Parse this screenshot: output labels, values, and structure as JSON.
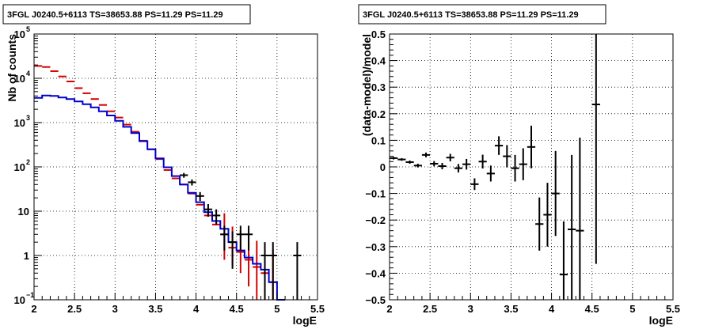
{
  "chart_data": [
    {
      "type": "histogram",
      "title": "3FGL J0240.5+6113 TS=38653.88 PS=11.29 PS=11.29",
      "xlabel": "logE",
      "ylabel": "Nb of counts",
      "xlim": [
        2,
        5.5
      ],
      "ylim": [
        0.1,
        100000
      ],
      "yscale": "log",
      "grid": true,
      "xticks": [
        "2",
        "2.5",
        "3",
        "3.5",
        "4",
        "4.5",
        "5",
        "5.5"
      ],
      "yticks": [
        {
          "value": 0.1,
          "label": "10",
          "exp": "−1"
        },
        {
          "value": 1,
          "label": "1",
          "exp": ""
        },
        {
          "value": 10,
          "label": "10",
          "exp": ""
        },
        {
          "value": 100,
          "label": "10",
          "exp": "2"
        },
        {
          "value": 1000,
          "label": "10",
          "exp": "3"
        },
        {
          "value": 10000,
          "label": "10",
          "exp": "4"
        },
        {
          "value": 100000,
          "label": "10",
          "exp": "5"
        }
      ],
      "bin_width": 0.1,
      "series": [
        {
          "role": "counts-red",
          "color": "#d40000",
          "style": "bars",
          "x": [
            2.05,
            2.15,
            2.25,
            2.35,
            2.45,
            2.55,
            2.65,
            2.75,
            2.85,
            2.95,
            3.05,
            3.15,
            3.25,
            3.35,
            3.45,
            3.55,
            3.65,
            3.75,
            3.85,
            3.95,
            4.05,
            4.15,
            4.25,
            4.35,
            4.45,
            4.55,
            4.65,
            4.75,
            4.85,
            4.95
          ],
          "y": [
            19000,
            18000,
            14500,
            11000,
            8500,
            6000,
            4600,
            3400,
            2500,
            1800,
            1300,
            900,
            620,
            390,
            250,
            150,
            85,
            55,
            40,
            25,
            14,
            8,
            5,
            3,
            1.5,
            1.2,
            0.8,
            0.55,
            0.4,
            0.25
          ],
          "err_low": [
            null,
            null,
            null,
            null,
            null,
            null,
            null,
            null,
            null,
            null,
            null,
            null,
            null,
            null,
            null,
            null,
            null,
            null,
            null,
            null,
            null,
            null,
            null,
            2.2,
            0.9,
            0.8,
            0.6,
            0.45,
            0.32,
            0.2
          ],
          "err_high": [
            null,
            null,
            null,
            null,
            null,
            null,
            null,
            null,
            null,
            null,
            null,
            null,
            null,
            null,
            null,
            null,
            null,
            null,
            null,
            null,
            null,
            null,
            null,
            6,
            3,
            2.5,
            2,
            1.6,
            1.4,
            1.1
          ]
        },
        {
          "role": "model-blue",
          "color": "#0000cc",
          "style": "step",
          "x": [
            2.05,
            2.15,
            2.25,
            2.35,
            2.45,
            2.55,
            2.65,
            2.75,
            2.85,
            2.95,
            3.05,
            3.15,
            3.25,
            3.35,
            3.45,
            3.55,
            3.65,
            3.75,
            3.85,
            3.95,
            4.05,
            4.15,
            4.25,
            4.35,
            4.45,
            4.55,
            4.65,
            4.75,
            4.85,
            4.95,
            5.05
          ],
          "y": [
            3600,
            4100,
            4000,
            3700,
            3400,
            3000,
            2600,
            2200,
            1800,
            1450,
            1100,
            800,
            580,
            380,
            250,
            155,
            98,
            62,
            40,
            26,
            16,
            9.5,
            6,
            4,
            2,
            1.3,
            0.9,
            0.65,
            0.48,
            0.25,
            0.1
          ]
        },
        {
          "role": "data-black",
          "color": "#000000",
          "style": "points",
          "x": [
            3.85,
            3.95,
            4.05,
            4.15,
            4.25,
            4.35,
            4.45,
            4.55,
            4.65,
            4.85,
            4.95,
            5.25
          ],
          "y": [
            65,
            45,
            22,
            11,
            8,
            3,
            2,
            3,
            3,
            1,
            1,
            1
          ],
          "err_low": [
            8,
            7,
            5,
            3.5,
            3,
            1.7,
            1.5,
            1.7,
            1.7,
            0.9,
            0.9,
            0.9
          ],
          "err_high": [
            8,
            7,
            5,
            3.5,
            3,
            1.7,
            1.5,
            1.7,
            1.7,
            1,
            1,
            1
          ]
        }
      ]
    },
    {
      "type": "scatter",
      "title": "3FGL J0240.5+6113 TS=38653.88 PS=11.29 PS=11.29",
      "xlabel": "logE",
      "ylabel": "(data-model)/model",
      "xlim": [
        2,
        5.5
      ],
      "ylim": [
        -0.5,
        0.5
      ],
      "grid": true,
      "xticks": [
        "2",
        "2.5",
        "3",
        "3.5",
        "4",
        "4.5",
        "5",
        "5.5"
      ],
      "yticks": [
        "−0.5",
        "−0.4",
        "−0.3",
        "−0.2",
        "−0.1",
        "0",
        "0.1",
        "0.2",
        "0.3",
        "0.4",
        "0.5"
      ],
      "series": [
        {
          "role": "residuals",
          "color": "#000000",
          "x": [
            2.05,
            2.15,
            2.25,
            2.35,
            2.45,
            2.55,
            2.65,
            2.75,
            2.85,
            2.95,
            3.05,
            3.15,
            3.25,
            3.35,
            3.45,
            3.55,
            3.65,
            3.75,
            3.85,
            3.95,
            4.05,
            4.15,
            4.25,
            4.35,
            4.55
          ],
          "y": [
            0.033,
            0.028,
            0.018,
            0.005,
            0.045,
            0.012,
            0.003,
            0.035,
            -0.005,
            0.01,
            -0.065,
            0.02,
            -0.025,
            0.08,
            0.04,
            -0.005,
            0.01,
            0.075,
            -0.215,
            -0.18,
            -0.1,
            -0.405,
            -0.235,
            -0.24,
            0.235
          ],
          "err": [
            0.005,
            0.005,
            0.006,
            0.007,
            0.009,
            0.01,
            0.012,
            0.014,
            0.016,
            0.02,
            0.022,
            0.026,
            0.03,
            0.035,
            0.042,
            0.05,
            0.06,
            0.08,
            0.1,
            0.12,
            0.16,
            0.2,
            0.28,
            0.35,
            0.6
          ]
        }
      ]
    }
  ]
}
